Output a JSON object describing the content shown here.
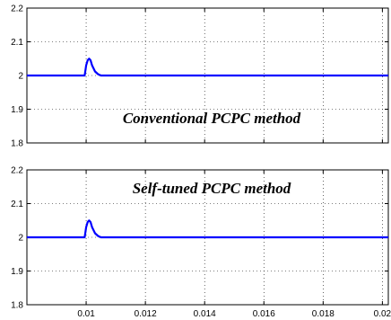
{
  "chart_data": [
    {
      "type": "line",
      "title": "",
      "xlabel": "",
      "ylabel": "",
      "annotation": "Conventional PCPC method",
      "xlim": [
        0.008,
        0.0202
      ],
      "ylim": [
        1.8,
        2.2
      ],
      "grid": true,
      "x_ticks": [
        0.01,
        0.012,
        0.014,
        0.016,
        0.018,
        0.02
      ],
      "x_tick_labels": [],
      "y_ticks": [
        1.8,
        1.9,
        2,
        2.1,
        2.2
      ],
      "y_tick_labels": [
        "1.8",
        "1.9",
        "2",
        "2.1",
        "2.2"
      ],
      "series": [
        {
          "color": "#0000ff",
          "x": [
            0.008,
            0.00995,
            0.01,
            0.01005,
            0.0101,
            0.01015,
            0.0102,
            0.0103,
            0.0104,
            0.0105,
            0.0107,
            0.0202
          ],
          "y": [
            2.0,
            2.0,
            2.03,
            2.045,
            2.05,
            2.045,
            2.03,
            2.012,
            2.004,
            2.0,
            2.0,
            2.0
          ]
        }
      ]
    },
    {
      "type": "line",
      "title": "",
      "xlabel": "",
      "ylabel": "",
      "annotation": "Self-tuned PCPC method",
      "xlim": [
        0.008,
        0.0202
      ],
      "ylim": [
        1.8,
        2.2
      ],
      "grid": true,
      "x_ticks": [
        0.01,
        0.012,
        0.014,
        0.016,
        0.018,
        0.02
      ],
      "x_tick_labels": [
        "0.01",
        "0.012",
        "0.014",
        "0.016",
        "0.018",
        "0.02"
      ],
      "y_ticks": [
        1.8,
        1.9,
        2,
        2.1,
        2.2
      ],
      "y_tick_labels": [
        "1.8",
        "1.9",
        "2",
        "2.1",
        "2.2"
      ],
      "series": [
        {
          "color": "#0000ff",
          "x": [
            0.008,
            0.00995,
            0.01,
            0.01005,
            0.0101,
            0.01015,
            0.0102,
            0.0103,
            0.0104,
            0.0105,
            0.0107,
            0.0202
          ],
          "y": [
            2.0,
            2.0,
            2.03,
            2.045,
            2.05,
            2.045,
            2.03,
            2.012,
            2.004,
            2.0,
            2.0,
            2.0
          ]
        }
      ]
    }
  ]
}
